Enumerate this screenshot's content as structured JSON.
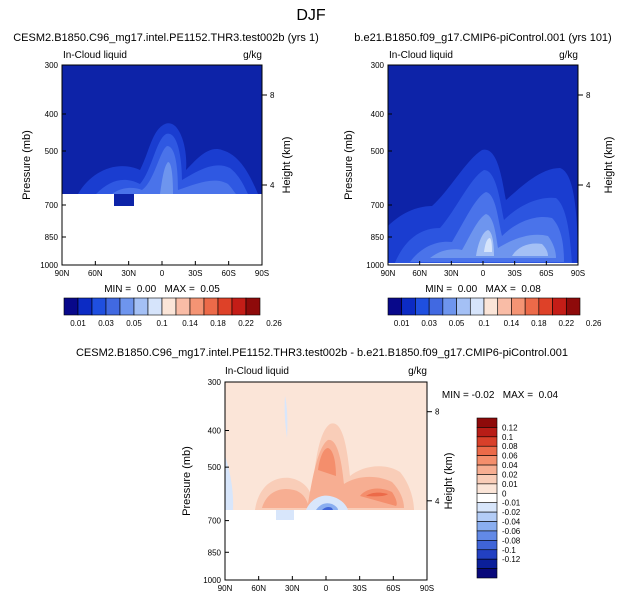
{
  "figure_title": "DJF",
  "chart_data": [
    {
      "type": "heatmap",
      "title": "CESM2.B1850.C96_mg17.intel.PE1152.THR3.test002b (yrs 1)",
      "subtitle_left": "In-Cloud liquid",
      "units": "g/kg",
      "ylabel": "Pressure (mb)",
      "ylabel_right": "Height (km)",
      "x_ticks": [
        "90N",
        "60N",
        "30N",
        "0",
        "30S",
        "60S",
        "90S"
      ],
      "y_ticks": [
        "300",
        "400",
        "500",
        "700",
        "850",
        "1000"
      ],
      "right_ticks": [
        "8",
        "4"
      ],
      "stats": "MIN =  0.00   MAX =  0.05",
      "colorbar_labels": [
        "0.01",
        "0.03",
        "0.05",
        "0.1",
        "0.14",
        "0.18",
        "0.22",
        "0.26"
      ],
      "colorbar_colors": [
        "#08088a",
        "#0c2bc4",
        "#1f4fe0",
        "#4169e1",
        "#6e95ee",
        "#a4c0f5",
        "#d6e4fb",
        "#fbe5d8",
        "#f9bca6",
        "#f49474",
        "#ec6a49",
        "#de4128",
        "#c41d17",
        "#8e0a0a"
      ]
    },
    {
      "type": "heatmap",
      "title": "b.e21.B1850.f09_g17.CMIP6-piControl.001 (yrs 101)",
      "subtitle_left": "In-Cloud liquid",
      "units": "g/kg",
      "ylabel": "Pressure (mb)",
      "ylabel_right": "Height (km)",
      "x_ticks": [
        "90N",
        "60N",
        "30N",
        "0",
        "30S",
        "60S",
        "90S"
      ],
      "y_ticks": [
        "300",
        "400",
        "500",
        "700",
        "850",
        "1000"
      ],
      "right_ticks": [
        "8",
        "4"
      ],
      "stats": "MIN =  0.00   MAX =  0.08",
      "colorbar_labels": [
        "0.01",
        "0.03",
        "0.05",
        "0.1",
        "0.14",
        "0.18",
        "0.22",
        "0.26"
      ],
      "colorbar_colors": [
        "#08088a",
        "#0c2bc4",
        "#1f4fe0",
        "#4169e1",
        "#6e95ee",
        "#a4c0f5",
        "#d6e4fb",
        "#fbe5d8",
        "#f9bca6",
        "#f49474",
        "#ec6a49",
        "#de4128",
        "#c41d17",
        "#8e0a0a"
      ]
    },
    {
      "type": "heatmap",
      "title": "CESM2.B1850.C96_mg17.intel.PE1152.THR3.test002b - b.e21.B1850.f09_g17.CMIP6-piControl.001",
      "subtitle_left": "In-Cloud liquid",
      "units": "g/kg",
      "ylabel": "Pressure (mb)",
      "ylabel_right": "Height (km)",
      "x_ticks": [
        "90N",
        "60N",
        "30N",
        "0",
        "30S",
        "60S",
        "90S"
      ],
      "y_ticks": [
        "300",
        "400",
        "500",
        "700",
        "850",
        "1000"
      ],
      "right_ticks": [
        "8",
        "4"
      ],
      "stats": "MIN = -0.02   MAX =  0.04",
      "colorbar_labels": [
        "0.12",
        "0.1",
        "0.08",
        "0.06",
        "0.04",
        "0.02",
        "0.01",
        "0",
        "-0.01",
        "-0.02",
        "-0.04",
        "-0.06",
        "-0.08",
        "-0.1",
        "-0.12"
      ],
      "colorbar_colors": [
        "#8e0a0a",
        "#b81d17",
        "#d8402a",
        "#ec6a49",
        "#f48e6c",
        "#f7ae92",
        "#f9cdb8",
        "#fbe5d8",
        "#ffffff",
        "#d8e6fb",
        "#b3ccf6",
        "#8aaef0",
        "#6289e6",
        "#3f64d8",
        "#2240c2",
        "#0b1f9a",
        "#08087a"
      ]
    }
  ]
}
